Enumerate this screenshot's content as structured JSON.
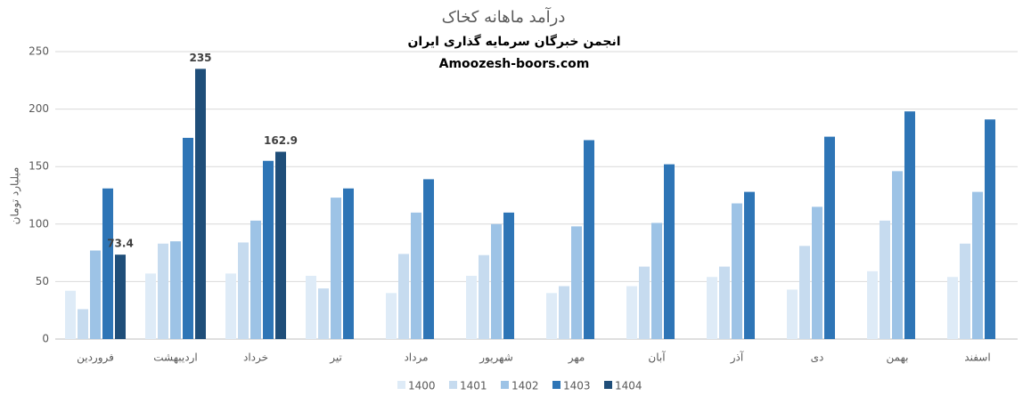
{
  "chart_data": {
    "type": "bar",
    "title": "درآمد ماهانه کخاک",
    "subtitle": "انجمن خبرگان سرمایه گذاری ایران",
    "source": "Amoozesh-boors.com",
    "y_label": "میلیارد تومان",
    "categories": [
      "فروردین",
      "اردیبهشت",
      "خرداد",
      "تیر",
      "مرداد",
      "شهریور",
      "مهر",
      "آبان",
      "آذر",
      "دی",
      "بهمن",
      "اسفند"
    ],
    "series": [
      {
        "name": "1400",
        "color": "#deebf7",
        "values": [
          42,
          57,
          57,
          55,
          40,
          55,
          40,
          46,
          54,
          43,
          59,
          54
        ]
      },
      {
        "name": "1401",
        "color": "#c6dbef",
        "values": [
          26,
          83,
          84,
          44,
          74,
          73,
          46,
          63,
          63,
          81,
          103,
          83
        ]
      },
      {
        "name": "1402",
        "color": "#9dc3e6",
        "values": [
          77,
          85,
          103,
          123,
          110,
          100,
          98,
          101,
          118,
          115,
          146,
          128
        ]
      },
      {
        "name": "1403",
        "color": "#2e75b6",
        "values": [
          131,
          175,
          155,
          131,
          139,
          110,
          173,
          152,
          128,
          176,
          198,
          191
        ]
      },
      {
        "name": "1404",
        "color": "#1f4e79",
        "values": [
          73.4,
          235,
          162.9,
          null,
          null,
          null,
          null,
          null,
          null,
          null,
          null,
          null
        ],
        "data_labels": true
      }
    ],
    "ylim": [
      0,
      250
    ],
    "yticks": [
      0,
      50,
      100,
      150,
      200,
      250
    ],
    "grid": true,
    "legend": "bottom"
  }
}
